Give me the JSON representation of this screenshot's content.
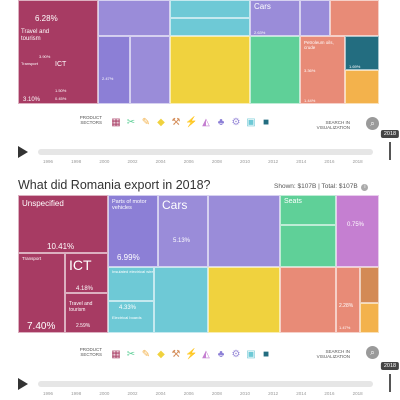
{
  "title": "What did Romania export in 2018?",
  "shown_label": "Shown:",
  "shown_value": "$107B",
  "total_label": "Total:",
  "total_value": "$107B",
  "info_icon": "info-icon",
  "top_panel": {
    "tiles": {
      "services_pct": "6.28%",
      "travel_label": "Travel and tourism",
      "travel_pct": "3.90%",
      "transport_label": "Transport",
      "ict_label": "ICT",
      "transport_pct": "3.10%",
      "ict_pct_a": "1.50%",
      "ict_pct_b": "0.45%",
      "textile_pct": "2.47%",
      "cars_label": "Cars",
      "cars_pct": "2.63%",
      "petroleum_label": "Petroleum oils, crude",
      "petroleum_pct": "3.36%",
      "misc_pct": "1.69%",
      "misc_pct_b": "1.44%"
    }
  },
  "bottom_panel": {
    "tiles": {
      "unspecified_label": "Unspecified",
      "unspecified_pct": "10.41%",
      "transport_label": "Transport",
      "ict_label": "ICT",
      "ict_pct": "4.18%",
      "travel_label": "Travel and tourism",
      "transport_pct": "7.40%",
      "travel_pct": "2.59%",
      "parts_label": "Parts of motor vehicles",
      "parts_pct": "6.99%",
      "cars_label": "Cars",
      "cars_pct": "5.13%",
      "insulated_label": "Insulated electrical wire",
      "electrical_label": "Electrical boards",
      "electrical_pct": "4.33%",
      "seats_label": "Seats",
      "seats_pct": "0.75%",
      "petroleum_pct": "2.28%",
      "misc_pct": "1.47%"
    }
  },
  "sector_bar": {
    "label": "PRODUCT SECTORS",
    "icons": [
      "services-icon",
      "textiles-icon",
      "agriculture-icon",
      "stone-icon",
      "minerals-icon",
      "metals-icon",
      "chemicals-icon",
      "vehicles-icon",
      "machinery-icon",
      "electronics-icon",
      "other-icon"
    ]
  },
  "search": {
    "label": "SEARCH IN VISUALIZATION",
    "icon": "search-icon"
  },
  "timeline": {
    "years": [
      "1996",
      "1998",
      "2000",
      "2002",
      "2004",
      "2006",
      "2008",
      "2010",
      "2012",
      "2014",
      "2016",
      "2018"
    ],
    "selected_year": "2018"
  },
  "colors": {
    "services": "#a73b63",
    "machinery": "#8c7fd6",
    "vehicles": "#9a8cd9",
    "electronics": "#6ec9d6",
    "metals": "#f0d23e",
    "minerals": "#e88b77",
    "chemicals": "#c57fd1",
    "textiles": "#5fd098",
    "agriculture": "#f3b24c",
    "stone": "#d38a55",
    "other": "#236d80"
  }
}
